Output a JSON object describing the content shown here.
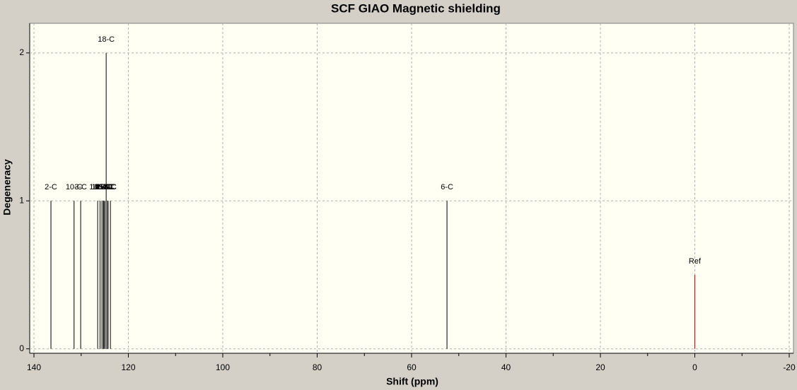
{
  "chart_data": {
    "type": "stick",
    "title": "SCF GIAO Magnetic shielding",
    "x_label": "Shift (ppm)",
    "y_label": "Degeneracy",
    "x": [
      136.4,
      131.5,
      130.1,
      126.5,
      126.0,
      125.6,
      125.3,
      125.2,
      125.0,
      124.7,
      124.4,
      124.3,
      123.8,
      52.5,
      0
    ],
    "values": [
      1,
      1,
      1,
      1,
      1,
      1,
      1,
      1,
      1,
      2,
      1,
      1,
      1,
      1,
      0.5
    ],
    "labels": [
      "2-C",
      "10-C",
      "3-C",
      "14-C",
      "12-C",
      "16-C",
      "15-C",
      "11-C",
      "13-C",
      "18-C",
      "17-C",
      "4-C",
      "5-C",
      "6-C",
      "Ref"
    ],
    "colors": [
      "#000000",
      "#000000",
      "#000000",
      "#000000",
      "#000000",
      "#000000",
      "#000000",
      "#000000",
      "#000000",
      "#000000",
      "#000000",
      "#000000",
      "#000000",
      "#000000",
      "#cc0000"
    ],
    "xlim": [
      140.9,
      -20.9
    ],
    "xticks": [
      140,
      120,
      100,
      80,
      60,
      40,
      20,
      0,
      -20
    ],
    "xminorticks": [
      130,
      110,
      90,
      70,
      50,
      30,
      10,
      -10
    ],
    "ylim": [
      -0.03,
      2.2
    ],
    "yticks": [
      0,
      1,
      2
    ],
    "grid": true
  }
}
